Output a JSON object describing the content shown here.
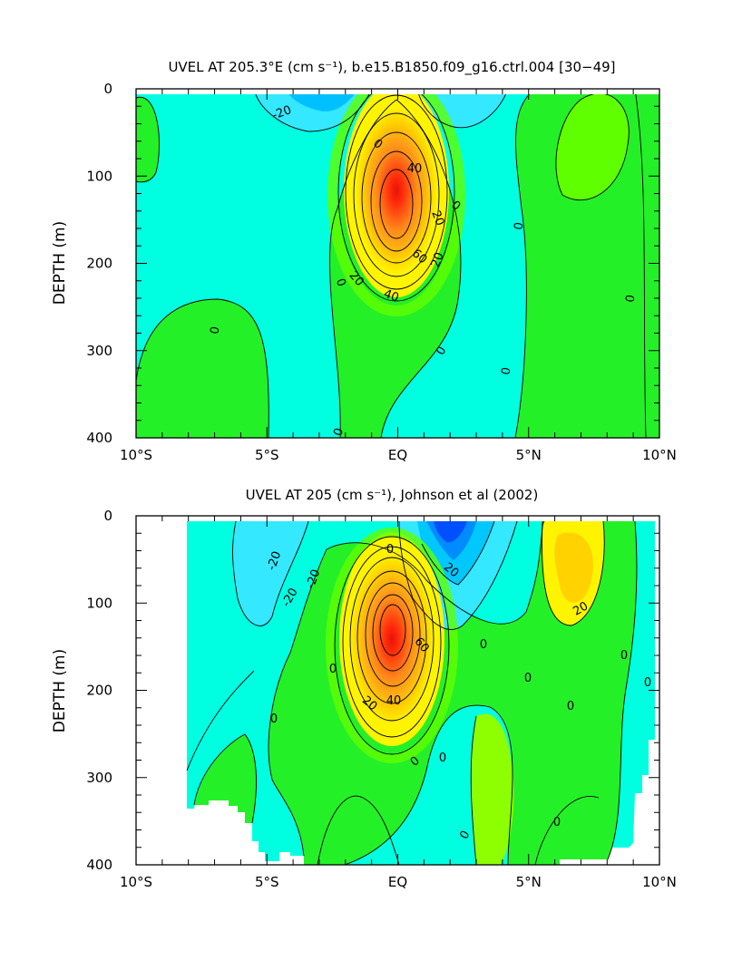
{
  "chart_data": [
    {
      "type": "contour",
      "title": "UVEL AT 205.3°E (cm s⁻¹), b.e15.B1850.f09_g16.ctrl.004 [30−49]",
      "xlabel": "",
      "ylabel": "DEPTH (m)",
      "x_ticks": [
        "10°S",
        "5°S",
        "EQ",
        "5°N",
        "10°N"
      ],
      "y_ticks": [
        "0",
        "100",
        "200",
        "300",
        "400"
      ],
      "xlim": [
        -10,
        10
      ],
      "ylim": [
        0,
        400
      ],
      "contour_interval": 10,
      "contour_labels": [
        "-20",
        "0",
        "0",
        "0",
        "0",
        "0",
        "0",
        "0",
        "0",
        "0",
        "20",
        "20",
        "20",
        "40",
        "40",
        "60"
      ],
      "core": {
        "lat": 0,
        "depth": 145,
        "max": 80
      },
      "color_levels": [
        {
          "value": -30,
          "color": "#00b8ff"
        },
        {
          "value": -20,
          "color": "#33e8ff"
        },
        {
          "value": -10,
          "color": "#00ffe8"
        },
        {
          "value": 0,
          "color": "#00f080"
        },
        {
          "value": 10,
          "color": "#30e840"
        },
        {
          "value": 20,
          "color": "#60ff00"
        },
        {
          "value": 30,
          "color": "#fff200"
        },
        {
          "value": 40,
          "color": "#ffcc00"
        },
        {
          "value": 50,
          "color": "#ffa500"
        },
        {
          "value": 60,
          "color": "#ff8c1a"
        },
        {
          "value": 70,
          "color": "#ff5a14"
        },
        {
          "value": 80,
          "color": "#ff1a0a"
        }
      ]
    },
    {
      "type": "contour",
      "title": "UVEL AT 205 (cm s⁻¹), Johnson et al (2002)",
      "xlabel": "",
      "ylabel": "DEPTH (m)",
      "x_ticks": [
        "10°S",
        "5°S",
        "EQ",
        "5°N",
        "10°N"
      ],
      "y_ticks": [
        "0",
        "100",
        "200",
        "300",
        "400"
      ],
      "xlim": [
        -10,
        10
      ],
      "ylim": [
        0,
        400
      ],
      "contour_interval": 10,
      "contour_labels": [
        "-20",
        "-20",
        "-20",
        "0",
        "0",
        "0",
        "0",
        "0",
        "0",
        "0",
        "0",
        "0",
        "0",
        "0",
        "0",
        "20",
        "20",
        "20",
        "40",
        "60"
      ],
      "core": {
        "lat": -0.2,
        "depth": 130,
        "max": 90
      }
    }
  ]
}
